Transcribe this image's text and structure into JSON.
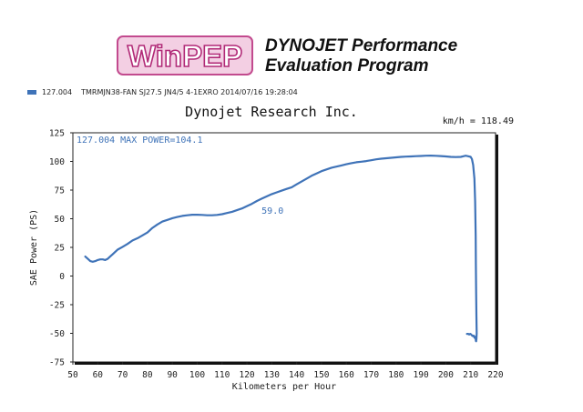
{
  "logo": {
    "text": "WinPEP"
  },
  "program": {
    "line1": "DYNOJET Performance",
    "line2": "Evaluation Program"
  },
  "legend": {
    "id": "127.004",
    "description": "TMRMJN38-FAN SJ27.5 JN4/5 4-1EXRO 2014/07/16 19:28:04",
    "color": "#3f73b8"
  },
  "company": "Dynojet  Research  Inc.",
  "readout": {
    "speed": "km/h = 118.49"
  },
  "chart_data": {
    "type": "line",
    "title": "Dynojet  Research  Inc.",
    "xlabel": "Kilometers per Hour",
    "ylabel": "SAE Power (PS)",
    "xlim": [
      50,
      220
    ],
    "ylim": [
      -75,
      125
    ],
    "x_ticks": [
      50,
      60,
      70,
      80,
      90,
      100,
      110,
      120,
      130,
      140,
      150,
      160,
      170,
      180,
      190,
      200,
      210,
      220
    ],
    "y_ticks": [
      125,
      100,
      75,
      50,
      25,
      0,
      -25,
      -50,
      -75
    ],
    "grid": false,
    "series": [
      {
        "name": "127.004",
        "color": "#3f73b8",
        "x": [
          55,
          56,
          57,
          58,
          59,
          60,
          61,
          62,
          63,
          64,
          65,
          66,
          68,
          70,
          72,
          74,
          76,
          78,
          80,
          82,
          84,
          86,
          88,
          90,
          92,
          94,
          96,
          98,
          100,
          102,
          104,
          106,
          108,
          110,
          112,
          114,
          116,
          118,
          120,
          122,
          124,
          126,
          128,
          130,
          132,
          134,
          136,
          138,
          140,
          142,
          144,
          146,
          148,
          150,
          152,
          154,
          156,
          158,
          160,
          162,
          164,
          166,
          168,
          170,
          172,
          174,
          176,
          178,
          180,
          182,
          184,
          186,
          188,
          190,
          192,
          194,
          196,
          198,
          200,
          202,
          204,
          206,
          208,
          209,
          210,
          210.5,
          211,
          211.5,
          211.8,
          212,
          212.1,
          212.2,
          212.3,
          212.4,
          212.3,
          212.2,
          212.1,
          212,
          211.9,
          211.8,
          211.6,
          211.4,
          211.2,
          211,
          210.6,
          210.2,
          209.8,
          209.4,
          209,
          208.5
        ],
        "y": [
          17,
          15,
          13,
          12.5,
          13,
          14,
          14.5,
          14.5,
          14,
          15,
          17,
          19,
          23,
          25.5,
          28,
          31,
          33,
          35.5,
          38,
          42,
          45,
          47.5,
          49,
          50.5,
          51.5,
          52.5,
          53,
          53.5,
          53.5,
          53.3,
          53,
          53,
          53.3,
          54,
          55,
          56,
          57.5,
          59,
          61,
          63,
          65.5,
          67.5,
          69.5,
          71.5,
          73,
          74.5,
          76,
          77.5,
          80,
          82.5,
          85,
          87.5,
          89.5,
          91.5,
          93,
          94.5,
          95.5,
          96.5,
          97.5,
          98.5,
          99.3,
          99.8,
          100.3,
          101,
          101.8,
          102.4,
          102.8,
          103.2,
          103.6,
          104,
          104.2,
          104.4,
          104.6,
          104.8,
          105,
          105.1,
          104.9,
          104.7,
          104.4,
          104,
          103.8,
          104,
          105,
          104.5,
          104,
          102,
          97,
          85,
          65,
          35,
          10,
          -15,
          -35,
          -50,
          -55,
          -57,
          -56.5,
          -55,
          -53,
          -53,
          -54,
          -53,
          -52,
          -52.5,
          -52,
          -51,
          -50.5,
          -51,
          -50.5,
          -50.5
        ]
      }
    ],
    "annotations": [
      {
        "text": "127.004  MAX POWER=104.1"
      },
      {
        "text": "59.0",
        "x": 127,
        "y": 59
      }
    ]
  }
}
